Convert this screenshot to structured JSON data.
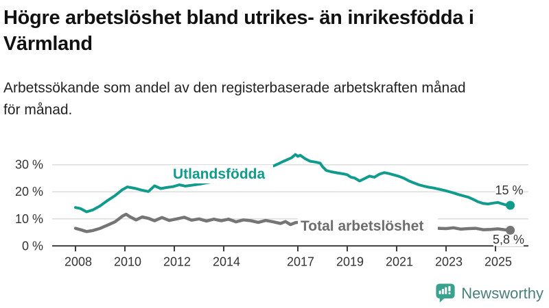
{
  "header": {
    "title_line1": "Högre arbetslöshet bland utrikes- än inrikesfödda i",
    "title_line2": "Värmland",
    "title": "Högre arbetslöshet bland utrikes- än inrikesfödda i Värmland",
    "subtitle_line1": "Arbetssökande som andel av den registerbaserade arbetskraften månad",
    "subtitle_line2": "för månad.",
    "subtitle": "Arbetssökande som andel av den registerbaserade arbetskraften månad för månad."
  },
  "chart_data": {
    "type": "line",
    "unit": "percent of registered labour force",
    "grid": true,
    "legend_position": "inline-labels",
    "x_axis": {
      "ticks": [
        2008,
        2010,
        2012,
        2014,
        2017,
        2019,
        2021,
        2023,
        2025
      ]
    },
    "y_axis": {
      "ticks": [
        {
          "value": 0,
          "label": "0 %"
        },
        {
          "value": 10,
          "label": "10 %"
        },
        {
          "value": 20,
          "label": "20 %"
        },
        {
          "value": 30,
          "label": "30 %"
        }
      ],
      "max": 35
    },
    "series": [
      {
        "name": "Utlandsfödda",
        "color": "#109b8d",
        "end_label": "15 %",
        "end_value": 15,
        "x": [
          2008.0,
          2008.2,
          2008.45,
          2008.7,
          2009.0,
          2009.3,
          2009.6,
          2009.9,
          2010.1,
          2010.4,
          2010.7,
          2010.95,
          2011.2,
          2011.45,
          2011.7,
          2011.95,
          2012.2,
          2012.45,
          2012.7,
          2013.0,
          2013.3,
          2013.6,
          2013.9,
          2014.2,
          2014.5,
          2014.8,
          2015.1,
          2015.4,
          2015.7,
          2016.0,
          2016.2,
          2016.4,
          2016.6,
          2016.75,
          2016.9,
          2017.0,
          2017.1,
          2017.3,
          2017.5,
          2017.7,
          2017.9,
          2018.0,
          2018.15,
          2018.35,
          2018.6,
          2018.85,
          2019.0,
          2019.15,
          2019.3,
          2019.5,
          2019.7,
          2019.9,
          2020.1,
          2020.3,
          2020.5,
          2020.7,
          2020.9,
          2021.1,
          2021.3,
          2021.5,
          2021.7,
          2021.9,
          2022.1,
          2022.3,
          2022.5,
          2022.7,
          2022.9,
          2023.1,
          2023.3,
          2023.5,
          2023.7,
          2023.9,
          2024.1,
          2024.3,
          2024.5,
          2024.7,
          2024.9,
          2025.1,
          2025.25,
          2025.4,
          2025.6
        ],
        "values": [
          14.2,
          13.8,
          12.6,
          13.3,
          14.8,
          16.8,
          18.6,
          20.8,
          21.8,
          21.3,
          20.6,
          20.1,
          22.2,
          21.2,
          21.6,
          21.9,
          22.6,
          22.1,
          22.4,
          22.8,
          23.3,
          23.8,
          24.5,
          25.2,
          25.8,
          26.6,
          27.4,
          28.4,
          29.1,
          29.5,
          30.3,
          31.2,
          32.0,
          32.6,
          33.8,
          33.1,
          33.5,
          32.2,
          31.3,
          31.0,
          30.6,
          29.3,
          27.9,
          27.4,
          27.0,
          26.6,
          26.3,
          25.4,
          25.1,
          24.0,
          24.9,
          25.8,
          25.4,
          26.5,
          27.1,
          26.7,
          26.2,
          25.7,
          25.0,
          24.0,
          23.3,
          22.6,
          22.1,
          21.7,
          21.4,
          21.0,
          20.6,
          20.1,
          19.6,
          19.0,
          18.5,
          18.0,
          17.2,
          16.3,
          15.7,
          15.5,
          15.8,
          16.1,
          15.6,
          15.2,
          15.0
        ]
      },
      {
        "name": "Total arbetslöshet",
        "color": "#757575",
        "end_label": "5,8 %",
        "end_value": 5.8,
        "x": [
          2008.0,
          2008.2,
          2008.45,
          2008.7,
          2009.0,
          2009.3,
          2009.6,
          2009.9,
          2010.05,
          2010.2,
          2010.45,
          2010.7,
          2010.95,
          2011.2,
          2011.5,
          2011.8,
          2012.1,
          2012.4,
          2012.7,
          2013.0,
          2013.3,
          2013.6,
          2013.9,
          2014.2,
          2014.5,
          2014.8,
          2015.1,
          2015.4,
          2015.7,
          2016.0,
          2016.3,
          2016.5,
          2016.7,
          2016.9,
          2017.1,
          2017.5,
          2018.0,
          2018.5,
          2019.0,
          2019.5,
          2020.0,
          2020.5,
          2021.0,
          2021.5,
          2022.0,
          2022.4,
          2022.7,
          2023.0,
          2023.3,
          2023.6,
          2023.9,
          2024.2,
          2024.5,
          2024.8,
          2025.1,
          2025.35,
          2025.6
        ],
        "values": [
          6.5,
          6.0,
          5.3,
          5.7,
          6.5,
          7.7,
          8.9,
          11.0,
          11.7,
          10.8,
          9.6,
          10.7,
          10.2,
          9.3,
          10.5,
          9.4,
          10.0,
          10.6,
          9.5,
          10.0,
          9.2,
          9.9,
          9.3,
          9.9,
          8.9,
          9.6,
          9.3,
          8.7,
          9.4,
          8.9,
          8.3,
          9.0,
          7.9,
          8.6,
          8.8,
          8.5,
          8.7,
          8.1,
          7.9,
          7.5,
          7.9,
          8.5,
          8.1,
          7.4,
          6.9,
          6.6,
          6.5,
          6.4,
          6.7,
          6.2,
          6.4,
          6.5,
          6.0,
          6.1,
          6.3,
          6.0,
          5.8
        ]
      }
    ]
  },
  "footer": {
    "brand": "Newsworthy"
  },
  "colors": {
    "accent_teal": "#109b8d",
    "line_gray": "#757575",
    "gray_label": "#6d6d6d",
    "grid": "#dcdcdc",
    "axis": "#3a3a3a",
    "title_text": "#111111",
    "body_text": "#222222",
    "logo_icon": "#3ba18f",
    "logo_text": "#4a7f7a"
  }
}
